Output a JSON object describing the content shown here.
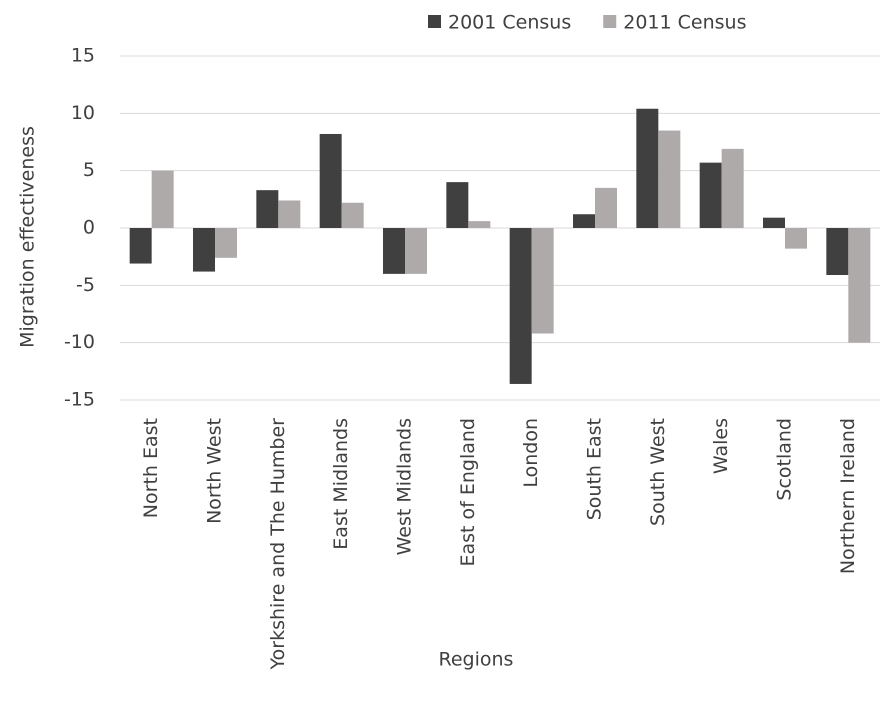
{
  "chart_data": {
    "type": "bar",
    "x_label": "Regions",
    "y_label": "Migration effectiveness",
    "categories": [
      "North East",
      "North West",
      "Yorkshire and The Humber",
      "East Midlands",
      "West Midlands",
      "East of England",
      "London",
      "South East",
      "South West",
      "Wales",
      "Scotland",
      "Northern Ireland"
    ],
    "series": [
      {
        "name": "2001 Census",
        "color": "#404040",
        "values": [
          -3.1,
          -3.8,
          3.3,
          8.2,
          -4.0,
          4.0,
          -13.6,
          1.2,
          10.4,
          5.7,
          0.9,
          -4.1
        ]
      },
      {
        "name": "2011 Census",
        "color": "#aeaaaa",
        "values": [
          5.0,
          -2.6,
          2.4,
          2.2,
          -4.0,
          0.6,
          -9.2,
          3.5,
          8.5,
          6.9,
          -1.8,
          -10.0
        ]
      }
    ],
    "ylim": [
      -15,
      15
    ],
    "yticks": [
      -15,
      -10,
      -5,
      0,
      5,
      10,
      15
    ],
    "grid": true,
    "legend": "top-right"
  }
}
